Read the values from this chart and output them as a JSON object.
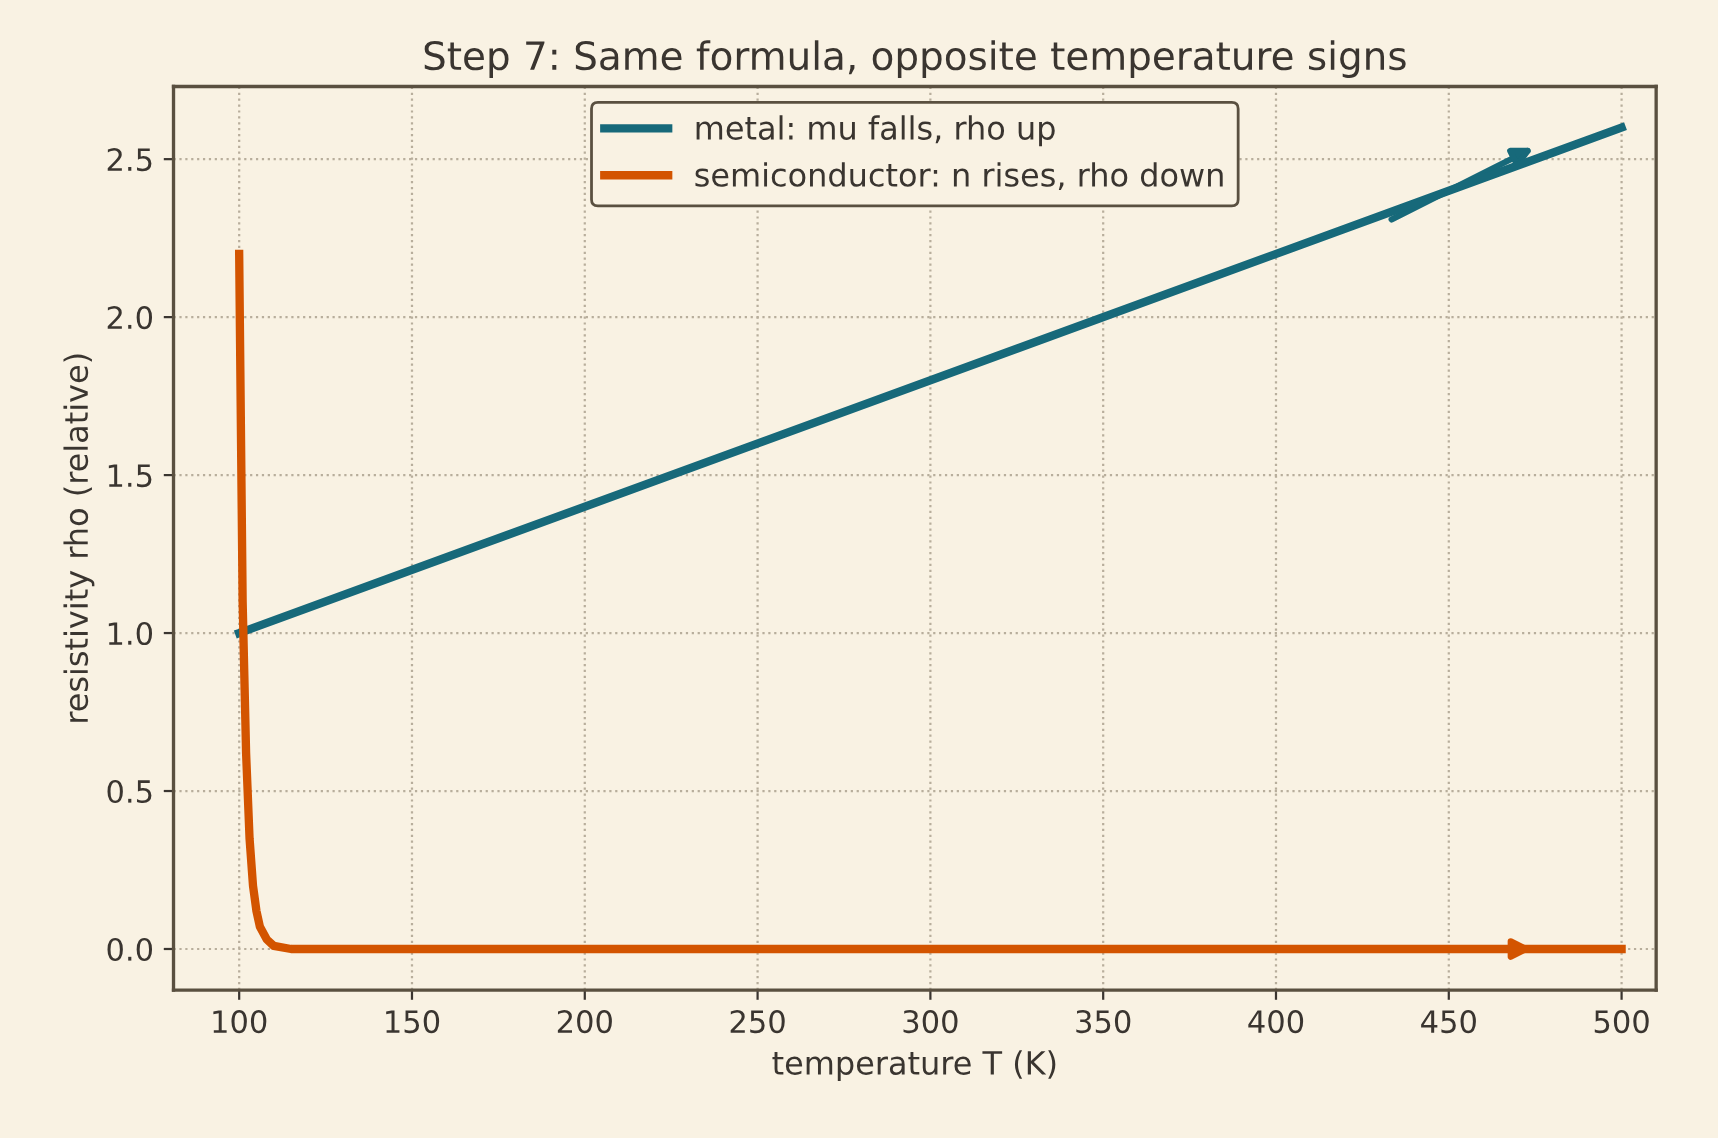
{
  "chart_data": {
    "type": "line",
    "title": "Step 7: Same formula, opposite temperature signs",
    "xlabel": "temperature T (K)",
    "ylabel": "resistivity rho (relative)",
    "series": [
      {
        "name": "metal: mu falls, rho up",
        "color": "#17697a",
        "x": [
          100,
          500
        ],
        "values": [
          1.0,
          2.6
        ]
      },
      {
        "name": "semiconductor: n rises, rho down",
        "color": "#d35400",
        "x": [
          100,
          101,
          102,
          103,
          104,
          105,
          106,
          108,
          110,
          115,
          120,
          200,
          300,
          400,
          500
        ],
        "values": [
          2.2,
          1.1,
          0.62,
          0.35,
          0.2,
          0.12,
          0.07,
          0.03,
          0.01,
          0.0,
          0.0,
          0.0,
          0.0,
          0.0,
          0.0
        ]
      }
    ],
    "xlim": [
      81,
      510
    ],
    "ylim": [
      -0.13,
      2.73
    ],
    "xticks": [
      100,
      150,
      200,
      250,
      300,
      350,
      400,
      450,
      500
    ],
    "yticks": [
      {
        "value": 0,
        "label": "0.0"
      },
      0.5,
      {
        "value": 1,
        "label": "1.0"
      },
      1.5,
      {
        "value": 2,
        "label": "2.0"
      },
      2.5
    ],
    "grid": true,
    "legend": "top",
    "marker": "none",
    "line_style": "solid"
  }
}
